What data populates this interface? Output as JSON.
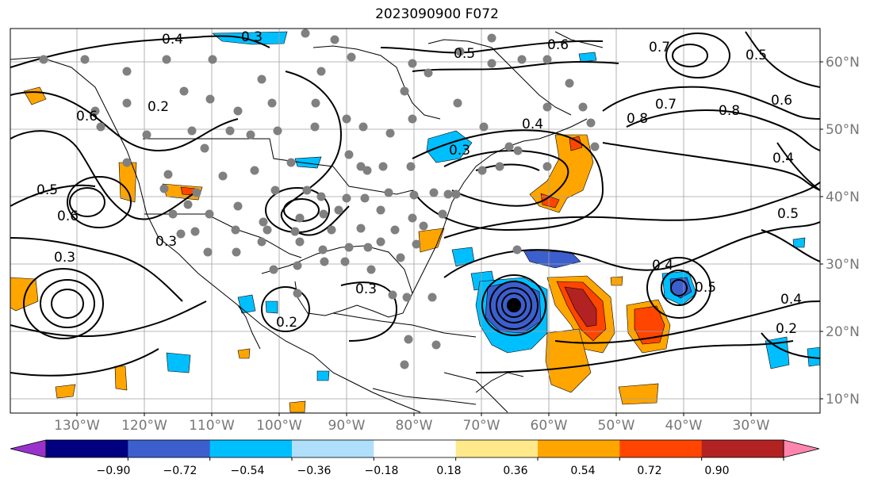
{
  "title": "2023090900 F072",
  "lon_labels": [
    "130°W",
    "120°W",
    "110°W",
    "100°W",
    "90°W",
    "80°W",
    "70°W",
    "60°W",
    "50°W",
    "40°W",
    "30°W"
  ],
  "lat_labels": [
    "60°N",
    "50°N",
    "40°N",
    "30°N",
    "20°N",
    "10°N"
  ],
  "contour_labels": [
    "0.4",
    "0.3",
    "0.5",
    "0.6",
    "0.7",
    "0.8",
    "0.7",
    "0.8",
    "0.6",
    "0.5",
    "0.4",
    "0.2",
    "0.5",
    "0.6",
    "0.3",
    "0.3",
    "0.4",
    "0.5",
    "0.4",
    "0.3",
    "0.3",
    "0.2",
    "0.4",
    "0.2",
    "0.6",
    "0.5"
  ],
  "colorbar": {
    "colors": [
      "#9932cc",
      "#000080",
      "#3c5fcd",
      "#00bfff",
      "#afdffa",
      "#ffffff",
      "#ffe98a",
      "#ffa500",
      "#ff4500",
      "#b22222",
      "#ff85ad"
    ],
    "ticks": [
      "−0.90",
      "−0.72",
      "−0.54",
      "−0.36",
      "−0.18",
      "0.18",
      "0.36",
      "0.54",
      "0.72",
      "0.90"
    ]
  }
}
